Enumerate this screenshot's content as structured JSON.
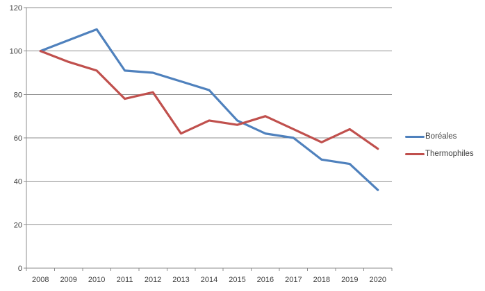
{
  "chart_data": {
    "type": "line",
    "title": "",
    "xlabel": "",
    "ylabel": "",
    "categories": [
      "2008",
      "2009",
      "2010",
      "2011",
      "2012",
      "2013",
      "2014",
      "2015",
      "2016",
      "2017",
      "2018",
      "2019",
      "2020"
    ],
    "series": [
      {
        "name": "Boréales",
        "color": "#4F81BD",
        "values": [
          100,
          105,
          110,
          91,
          90,
          86,
          82,
          68,
          62,
          60,
          50,
          48,
          36
        ]
      },
      {
        "name": "Thermophiles",
        "color": "#C0504D",
        "values": [
          100,
          95,
          91,
          78,
          81,
          62,
          68,
          66,
          70,
          64,
          58,
          64,
          55
        ]
      }
    ],
    "ylim": [
      0,
      120
    ],
    "yticks": [
      0,
      20,
      40,
      60,
      80,
      100,
      120
    ],
    "grid": "horizontal-gridlines-on",
    "legend_position": "right"
  },
  "styles": {
    "background_color": "#FFFFFF",
    "gridline_color": "#8C8C8C",
    "axis_color": "#8C8C8C",
    "tick_label_color": "#3F3F3F",
    "series_line_width": 3.2
  }
}
